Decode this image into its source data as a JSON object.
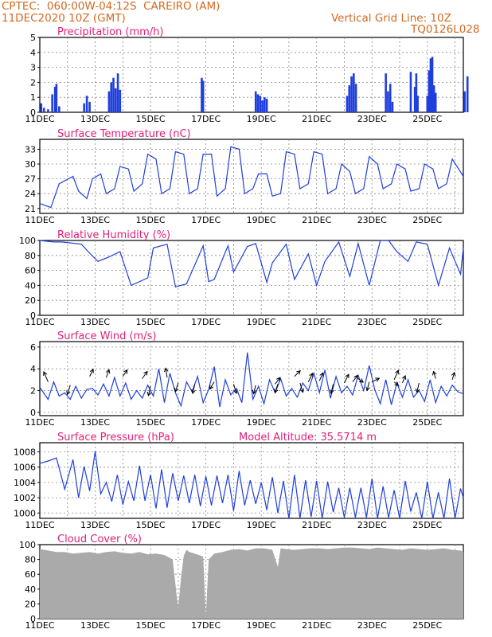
{
  "header": {
    "line1": "CPTEC:  060:00W-04:12S  CAREIRO (AM)",
    "line2": "11DEC2020 10Z (GMT)",
    "right1": "Vertical Grid Line: 10Z",
    "right2": "TQ0126L028"
  },
  "extra_label": "Model Altitude: 35.5714 m",
  "date_labels": [
    "11DEC",
    "13DEC",
    "15DEC",
    "17DEC",
    "19DEC",
    "21DEC",
    "23DEC",
    "25DEC"
  ],
  "colors": {
    "line": "#1f3fdd",
    "bar": "#1f3fdd",
    "cloud": "#aaaaaa",
    "title": "#e0207a",
    "header": "#d2691e"
  },
  "chart_data": [
    {
      "type": "bar",
      "title": "Precipitation (mm/h)",
      "ylim": [
        0,
        5
      ],
      "yticks": [
        0,
        1,
        2,
        3,
        4,
        5
      ],
      "x_unit": "day offset from 11DEC 10Z",
      "bars": [
        [
          0.05,
          0.6
        ],
        [
          0.15,
          0.3
        ],
        [
          0.3,
          0.2
        ],
        [
          0.45,
          1.2
        ],
        [
          0.55,
          1.7
        ],
        [
          0.6,
          1.9
        ],
        [
          0.7,
          0.4
        ],
        [
          1.6,
          0.6
        ],
        [
          1.7,
          1.1
        ],
        [
          1.8,
          0.7
        ],
        [
          2.5,
          1.4
        ],
        [
          2.58,
          2.0
        ],
        [
          2.66,
          2.3
        ],
        [
          2.74,
          1.6
        ],
        [
          2.82,
          2.6
        ],
        [
          2.9,
          1.5
        ],
        [
          5.85,
          2.3
        ],
        [
          5.9,
          2.1
        ],
        [
          7.8,
          1.4
        ],
        [
          7.88,
          1.2
        ],
        [
          7.96,
          1.1
        ],
        [
          8.04,
          0.8
        ],
        [
          8.12,
          1.0
        ],
        [
          8.2,
          0.9
        ],
        [
          11.1,
          1.1
        ],
        [
          11.18,
          1.8
        ],
        [
          11.26,
          2.4
        ],
        [
          11.34,
          2.6
        ],
        [
          11.42,
          1.9
        ],
        [
          12.5,
          2.6
        ],
        [
          12.58,
          1.4
        ],
        [
          12.66,
          1.9
        ],
        [
          12.74,
          0.7
        ],
        [
          13.4,
          2.7
        ],
        [
          13.55,
          1.7
        ],
        [
          13.6,
          2.6
        ],
        [
          13.65,
          1.1
        ],
        [
          14.0,
          1.1
        ],
        [
          14.06,
          2.8
        ],
        [
          14.12,
          3.6
        ],
        [
          14.18,
          3.7
        ],
        [
          14.24,
          1.8
        ],
        [
          14.3,
          1.3
        ],
        [
          15.35,
          1.4
        ],
        [
          15.45,
          2.4
        ]
      ]
    },
    {
      "type": "line",
      "title": "Surface Temperature (nC)",
      "ylim": [
        20,
        35
      ],
      "yticks": [
        21,
        24,
        27,
        30,
        33
      ],
      "x": [
        0,
        0.4,
        0.7,
        1.2,
        1.4,
        1.7,
        1.9,
        2.2,
        2.4,
        2.7,
        2.9,
        3.2,
        3.4,
        3.7,
        3.9,
        4.2,
        4.4,
        4.7,
        4.9,
        5.2,
        5.4,
        5.7,
        5.9,
        6.2,
        6.4,
        6.7,
        6.9,
        7.2,
        7.4,
        7.7,
        7.9,
        8.2,
        8.4,
        8.7,
        8.9,
        9.2,
        9.4,
        9.7,
        9.9,
        10.2,
        10.4,
        10.7,
        10.9,
        11.2,
        11.4,
        11.7,
        11.9,
        12.2,
        12.4,
        12.7,
        12.9,
        13.2,
        13.4,
        13.7,
        13.9,
        14.2,
        14.4,
        14.7,
        14.9,
        15.3
      ],
      "values": [
        22,
        21.2,
        26,
        27.5,
        24.5,
        23,
        27,
        28,
        24,
        25,
        29.5,
        29,
        24.5,
        26,
        32,
        31,
        24,
        25,
        32.5,
        32,
        24,
        25,
        32,
        32,
        23.5,
        25,
        33.5,
        33,
        24,
        25,
        28,
        28,
        23.5,
        24,
        32.5,
        32,
        25,
        26,
        32.5,
        32,
        24,
        25,
        30,
        28.5,
        24,
        25,
        31.5,
        30,
        25,
        26,
        30,
        29,
        24.5,
        25,
        30,
        29,
        25,
        26,
        31,
        27.5
      ]
    },
    {
      "type": "line",
      "title": "Relative Humidity (%)",
      "ylim": [
        0,
        100
      ],
      "yticks": [
        0,
        20,
        40,
        60,
        80,
        100
      ],
      "x": [
        0,
        0.5,
        0.8,
        1.5,
        1.8,
        2.1,
        2.5,
        2.9,
        3.3,
        3.9,
        4.1,
        4.6,
        4.9,
        5.3,
        5.9,
        6.1,
        6.3,
        6.8,
        7.0,
        7.5,
        7.8,
        8.2,
        8.4,
        8.9,
        9.2,
        9.7,
        10.0,
        10.3,
        10.8,
        11.2,
        11.5,
        11.9,
        12.3,
        12.6,
        12.9,
        13.3,
        13.6,
        14.0,
        14.4,
        14.8,
        15.2,
        15.3
      ],
      "values": [
        100,
        98,
        98,
        95,
        83,
        72,
        78,
        85,
        40,
        50,
        90,
        95,
        38,
        42,
        93,
        45,
        48,
        93,
        58,
        92,
        96,
        44,
        70,
        95,
        48,
        82,
        40,
        72,
        98,
        52,
        96,
        40,
        100,
        100,
        85,
        72,
        98,
        95,
        40,
        90,
        55,
        90
      ]
    },
    {
      "type": "line",
      "title": "Surface Wind (m/s)",
      "ylim": [
        -0.3,
        6.5
      ],
      "yticks": [
        0,
        2,
        4,
        6
      ],
      "x": [
        0,
        0.3,
        0.5,
        0.7,
        0.9,
        1.1,
        1.3,
        1.5,
        1.7,
        1.9,
        2.1,
        2.3,
        2.5,
        2.7,
        2.9,
        3.1,
        3.3,
        3.5,
        3.7,
        3.9,
        4.1,
        4.3,
        4.5,
        4.7,
        4.9,
        5.1,
        5.3,
        5.5,
        5.7,
        5.9,
        6.1,
        6.3,
        6.5,
        6.7,
        6.9,
        7.1,
        7.3,
        7.5,
        7.7,
        7.9,
        8.1,
        8.3,
        8.5,
        8.7,
        8.9,
        9.1,
        9.3,
        9.5,
        9.7,
        9.9,
        10.1,
        10.3,
        10.5,
        10.7,
        10.9,
        11.1,
        11.3,
        11.5,
        11.7,
        11.9,
        12.1,
        12.3,
        12.5,
        12.7,
        12.9,
        13.1,
        13.3,
        13.5,
        13.7,
        13.9,
        14.1,
        14.3,
        14.5,
        14.7,
        14.9,
        15.1,
        15.3
      ],
      "values": [
        2.3,
        1.2,
        2.8,
        1.5,
        1.8,
        1.2,
        2.4,
        1.3,
        2.1,
        2.2,
        1.6,
        2.6,
        1.5,
        3.2,
        1.5,
        2.7,
        1.2,
        2.0,
        1.3,
        2.5,
        1.5,
        4.0,
        0.9,
        3.6,
        1.8,
        0.6,
        2.8,
        1.9,
        3.3,
        0.9,
        2.1,
        4.2,
        0.5,
        3.0,
        1.6,
        2.2,
        0.9,
        5.5,
        1.2,
        2.4,
        0.8,
        3.0,
        1.8,
        3.1,
        1.5,
        2.2,
        1.4,
        2.7,
        2.0,
        3.6,
        1.8,
        3.9,
        1.3,
        3.3,
        1.8,
        2.4,
        1.6,
        3.4,
        2.0,
        4.3,
        2.1,
        0.8,
        3.0,
        0.7,
        2.7,
        1.4,
        3.0,
        1.4,
        2.0,
        1.0,
        3.0,
        0.9,
        2.4,
        1.5,
        2.5,
        1.9,
        1.7
      ]
    },
    {
      "type": "line",
      "title": "Surface Pressure (hPa)",
      "ylim": [
        999.3,
        1009.2
      ],
      "yticks": [
        1000,
        1002,
        1004,
        1006,
        1008
      ],
      "x": [
        0,
        0.3,
        0.6,
        0.9,
        1.2,
        1.4,
        1.6,
        1.8,
        2.0,
        2.2,
        2.4,
        2.6,
        2.8,
        3.0,
        3.2,
        3.4,
        3.6,
        3.8,
        4.0,
        4.2,
        4.4,
        4.6,
        4.8,
        5.0,
        5.2,
        5.4,
        5.6,
        5.8,
        6.0,
        6.2,
        6.4,
        6.6,
        6.8,
        7.0,
        7.2,
        7.4,
        7.6,
        7.8,
        8.0,
        8.2,
        8.4,
        8.6,
        8.8,
        9.0,
        9.2,
        9.4,
        9.6,
        9.8,
        10.0,
        10.2,
        10.4,
        10.6,
        10.8,
        11.0,
        11.2,
        11.4,
        11.6,
        11.8,
        12.0,
        12.2,
        12.4,
        12.6,
        12.8,
        13.0,
        13.2,
        13.4,
        13.6,
        13.8,
        14.0,
        14.2,
        14.4,
        14.6,
        14.8,
        15.0,
        15.2,
        15.3
      ],
      "values": [
        1006.5,
        1006.8,
        1007.2,
        1003.1,
        1007.0,
        1002.0,
        1006.1,
        1002.9,
        1008.1,
        1002.5,
        1004.0,
        1001.5,
        1005.0,
        1001.1,
        1004.1,
        1001.6,
        1006.2,
        1001.6,
        1005.0,
        1000.6,
        1005.7,
        1000.7,
        1005.2,
        1001.6,
        1004.9,
        1001.3,
        1005.0,
        1000.9,
        1004.8,
        1001.0,
        1004.9,
        1001.3,
        1005.0,
        1000.3,
        1005.5,
        1001.0,
        1004.3,
        1001.2,
        1004.0,
        1000.4,
        1004.7,
        1000.0,
        1004.2,
        999.3,
        1005.0,
        999.3,
        1004.3,
        999.5,
        1004.2,
        999.3,
        1004.1,
        1000.1,
        1003.3,
        999.4,
        1003.3,
        999.4,
        1003.3,
        999.4,
        1004.5,
        999.3,
        1003.5,
        999.4,
        1003.0,
        999.3,
        1004.2,
        1000.2,
        1002.7,
        999.3,
        1004.1,
        999.3,
        1002.7,
        999.3,
        1004.5,
        999.3,
        1003.2,
        1002.0
      ]
    },
    {
      "type": "area",
      "title": "Cloud Cover (%)",
      "ylim": [
        0,
        100
      ],
      "yticks": [
        0,
        20,
        40,
        60,
        80,
        100
      ],
      "x": [
        0,
        0.3,
        0.6,
        0.9,
        1.2,
        1.5,
        1.8,
        2.1,
        2.4,
        2.7,
        3.0,
        3.3,
        3.6,
        3.9,
        4.2,
        4.5,
        4.8,
        4.95,
        5.0,
        5.1,
        5.2,
        5.3,
        5.4,
        5.6,
        5.9,
        6.0,
        6.1,
        6.3,
        6.6,
        6.9,
        7.2,
        7.5,
        7.8,
        8.1,
        8.4,
        8.6,
        8.7,
        8.9,
        9.2,
        9.5,
        9.8,
        10.1,
        10.4,
        10.7,
        11.0,
        11.3,
        11.6,
        11.9,
        12.2,
        12.5,
        12.8,
        13.1,
        13.4,
        13.7,
        14.0,
        14.3,
        14.6,
        14.9,
        15.2,
        15.3
      ],
      "values": [
        94,
        92,
        90,
        90,
        88,
        89,
        90,
        88,
        90,
        91,
        89,
        88,
        90,
        87,
        88,
        86,
        80,
        30,
        15,
        55,
        85,
        93,
        90,
        88,
        84,
        4,
        80,
        88,
        90,
        93,
        94,
        92,
        95,
        95,
        93,
        70,
        95,
        94,
        93,
        94,
        95,
        95,
        94,
        95,
        96,
        96,
        95,
        94,
        96,
        95,
        94,
        93,
        95,
        94,
        93,
        94,
        95,
        93,
        92,
        90
      ]
    }
  ],
  "wind_arrows": [
    {
      "x": 0.3,
      "y": 2.8,
      "dx": -0.6,
      "dy": 1.4
    },
    {
      "x": 1.1,
      "y": 2.5,
      "dx": -0.4,
      "dy": -1.3
    },
    {
      "x": 1.8,
      "y": 3.3,
      "dx": 0.5,
      "dy": 1.0
    },
    {
      "x": 2.4,
      "y": 3.2,
      "dx": 0.4,
      "dy": 1.1
    },
    {
      "x": 3.0,
      "y": 3.3,
      "dx": 0.6,
      "dy": 0.9
    },
    {
      "x": 3.7,
      "y": 3.1,
      "dx": 0.7,
      "dy": 1.0
    },
    {
      "x": 4.0,
      "y": 2.4,
      "dx": -0.3,
      "dy": -1.3
    },
    {
      "x": 4.6,
      "y": 3.2,
      "dx": -0.2,
      "dy": 1.3
    },
    {
      "x": 5.0,
      "y": 2.7,
      "dx": -0.4,
      "dy": -1.2
    },
    {
      "x": 5.6,
      "y": 2.6,
      "dx": -0.3,
      "dy": -1.3
    },
    {
      "x": 6.3,
      "y": 2.8,
      "dx": -0.6,
      "dy": -1.0
    },
    {
      "x": 7.0,
      "y": 2.6,
      "dx": 0.4,
      "dy": -1.3
    },
    {
      "x": 7.8,
      "y": 2.5,
      "dx": -0.3,
      "dy": -1.2
    },
    {
      "x": 8.5,
      "y": 2.6,
      "dx": 0.7,
      "dy": 0.9
    },
    {
      "x": 8.6,
      "y": 2.6,
      "dx": -0.4,
      "dy": -1.2
    },
    {
      "x": 9.2,
      "y": 3.3,
      "dx": 0.8,
      "dy": 0.8
    },
    {
      "x": 9.4,
      "y": 2.7,
      "dx": 0.4,
      "dy": -1.3
    },
    {
      "x": 9.7,
      "y": 2.8,
      "dx": 0.6,
      "dy": 1.2
    },
    {
      "x": 10.1,
      "y": 2.9,
      "dx": 0.5,
      "dy": 1.1
    },
    {
      "x": 10.6,
      "y": 2.6,
      "dx": -0.3,
      "dy": -1.3
    },
    {
      "x": 11.0,
      "y": 2.7,
      "dx": 0.6,
      "dy": 1.2
    },
    {
      "x": 11.3,
      "y": 2.8,
      "dx": 0.7,
      "dy": 0.9
    },
    {
      "x": 11.5,
      "y": 3.1,
      "dx": 0.7,
      "dy": -0.5
    },
    {
      "x": 12.0,
      "y": 2.8,
      "dx": 1.0,
      "dy": 0.5
    },
    {
      "x": 11.9,
      "y": 2.8,
      "dx": -0.3,
      "dy": -1.2
    },
    {
      "x": 12.8,
      "y": 3.0,
      "dx": 0.6,
      "dy": 1.3
    },
    {
      "x": 12.8,
      "y": 2.8,
      "dx": 0.6,
      "dy": -0.5
    },
    {
      "x": 13.1,
      "y": 2.7,
      "dx": 0.4,
      "dy": 1.0
    },
    {
      "x": 13.7,
      "y": 2.7,
      "dx": -0.3,
      "dy": -1.3
    },
    {
      "x": 14.3,
      "y": 3.1,
      "dx": -0.3,
      "dy": 1.0
    },
    {
      "x": 14.9,
      "y": 3.0,
      "dx": 0.3,
      "dy": 1.0
    }
  ]
}
